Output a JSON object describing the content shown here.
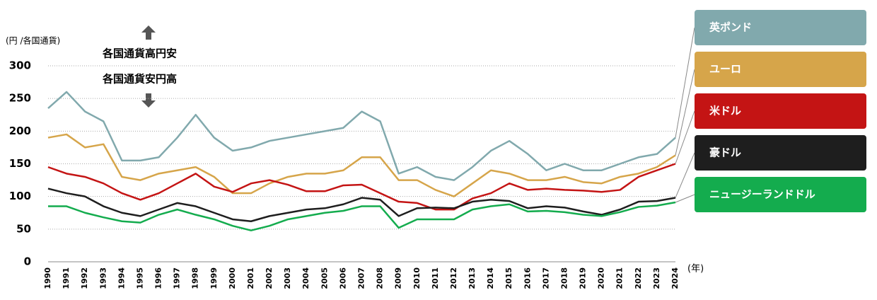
{
  "chart_data": {
    "type": "line",
    "y_label": "(円 /各国通貨)",
    "x_label": "(年)",
    "annotations": [
      "各国通貨高円安",
      "各国通貨安円高"
    ],
    "categories": [
      "1990",
      "1991",
      "1992",
      "1993",
      "1994",
      "1995",
      "1996",
      "1997",
      "1998",
      "1999",
      "2000",
      "2001",
      "2002",
      "2003",
      "2004",
      "2005",
      "2006",
      "2007",
      "2008",
      "2009",
      "2010",
      "2011",
      "2012",
      "2013",
      "2014",
      "2015",
      "2016",
      "2017",
      "2018",
      "2019",
      "2020",
      "2021",
      "2022",
      "2023",
      "2024"
    ],
    "series": [
      {
        "name": "英ポンド",
        "color": "#81a9ad",
        "values": [
          235,
          260,
          230,
          215,
          155,
          155,
          160,
          190,
          225,
          190,
          170,
          175,
          185,
          190,
          195,
          200,
          205,
          230,
          215,
          135,
          145,
          130,
          125,
          145,
          170,
          185,
          165,
          140,
          150,
          140,
          140,
          150,
          160,
          165,
          190
        ]
      },
      {
        "name": "ユーロ",
        "color": "#d6a54a",
        "values": [
          190,
          195,
          175,
          180,
          130,
          125,
          135,
          140,
          145,
          130,
          105,
          105,
          120,
          130,
          135,
          135,
          140,
          160,
          160,
          125,
          125,
          110,
          100,
          120,
          140,
          135,
          125,
          125,
          130,
          122,
          120,
          130,
          135,
          145,
          163
        ]
      },
      {
        "name": "米ドル",
        "color": "#c41414",
        "values": [
          145,
          135,
          130,
          120,
          105,
          95,
          105,
          120,
          135,
          115,
          107,
          120,
          125,
          118,
          108,
          108,
          117,
          118,
          105,
          92,
          90,
          80,
          80,
          97,
          105,
          120,
          110,
          112,
          110,
          109,
          107,
          110,
          130,
          140,
          150
        ]
      },
      {
        "name": "豪ドル",
        "color": "#1e1e1e",
        "values": [
          112,
          105,
          100,
          85,
          75,
          70,
          80,
          90,
          85,
          75,
          65,
          62,
          70,
          75,
          80,
          82,
          88,
          98,
          95,
          70,
          82,
          83,
          82,
          92,
          95,
          93,
          82,
          85,
          83,
          77,
          72,
          80,
          92,
          93,
          98
        ]
      },
      {
        "name": "ニュージーランドドル",
        "color": "#14ac4e",
        "values": [
          85,
          85,
          75,
          68,
          62,
          60,
          72,
          80,
          72,
          65,
          55,
          48,
          55,
          65,
          70,
          75,
          78,
          85,
          85,
          52,
          65,
          65,
          65,
          80,
          85,
          88,
          77,
          78,
          76,
          72,
          70,
          76,
          84,
          86,
          91
        ]
      }
    ],
    "ylim": [
      0,
      300
    ],
    "yticks": [
      0,
      50,
      100,
      150,
      200,
      250,
      300
    ],
    "grid": true
  }
}
